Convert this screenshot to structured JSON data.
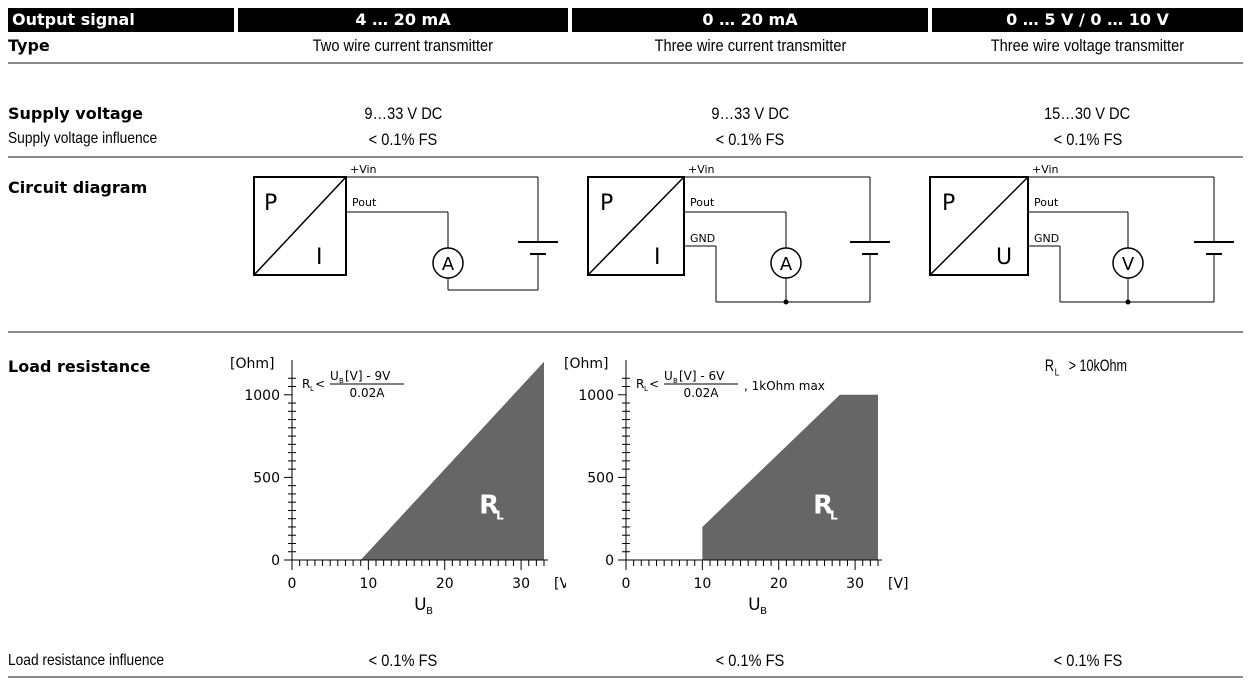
{
  "header": {
    "output_signal": "Output signal",
    "col1": "4 … 20 mA",
    "col2": "0 … 20 mA",
    "col3": "0 … 5 V  /  0 … 10 V"
  },
  "type_row": {
    "label": "Type",
    "col1": "Two wire current transmitter",
    "col2": "Three wire current transmitter",
    "col3": "Three wire voltage transmitter"
  },
  "supply_row": {
    "label": "Supply voltage",
    "sublabel": "Supply voltage influence",
    "col1": "9…33 V DC",
    "col2": "9…33 V DC",
    "col3": "15…30 V DC",
    "influence1": "< 0.1% FS",
    "influence2": "< 0.1% FS",
    "influence3": "< 0.1% FS"
  },
  "circuit_row": {
    "label": "Circuit diagram",
    "diagrams": [
      {
        "box_top": "P",
        "box_bottom": "I",
        "vin": "+Vin",
        "pout": "Pout",
        "gnd": "",
        "meter": "A"
      },
      {
        "box_top": "P",
        "box_bottom": "I",
        "vin": "+Vin",
        "pout": "Pout",
        "gnd": "GND",
        "meter": "A"
      },
      {
        "box_top": "P",
        "box_bottom": "U",
        "vin": "+Vin",
        "pout": "Pout",
        "gnd": "GND",
        "meter": "V"
      }
    ]
  },
  "load_row": {
    "label": "Load resistance",
    "col3_rl": "R",
    "col3_sub": "L",
    "col3_rest": "> 10kOhm",
    "influence_label": "Load resistance influence",
    "influence1": "< 0.1% FS",
    "influence2": "< 0.1% FS",
    "influence3": "< 0.1% FS"
  },
  "chart_data": [
    {
      "type": "area",
      "ylabel": "[Ohm]",
      "xlabel": "U",
      "xlabel_sub": "B",
      "xunit": "[V]",
      "xticks": [
        0,
        10,
        20,
        30
      ],
      "yticks": [
        0,
        500,
        1000
      ],
      "xlim": [
        0,
        33
      ],
      "ylim": [
        0,
        1150
      ],
      "formula_prefix": "R",
      "formula_prefix_sub": "L",
      "formula_lt": "<",
      "formula_num": "U",
      "formula_num_sub": "B",
      "formula_num_rest": "[V] - 9V",
      "formula_den": "0.02A",
      "formula_suffix": "",
      "region_label": "R",
      "region_label_sub": "L",
      "x": [
        9,
        33
      ],
      "y": [
        0,
        1200
      ],
      "color": "#666666"
    },
    {
      "type": "area",
      "ylabel": "[Ohm]",
      "xlabel": "U",
      "xlabel_sub": "B",
      "xunit": "[V]",
      "xticks": [
        0,
        10,
        20,
        30
      ],
      "yticks": [
        0,
        500,
        1000
      ],
      "xlim": [
        0,
        33
      ],
      "ylim": [
        0,
        1150
      ],
      "formula_prefix": "R",
      "formula_prefix_sub": "L",
      "formula_lt": "<",
      "formula_num": "U",
      "formula_num_sub": "B",
      "formula_num_rest": "[V] - 6V",
      "formula_den": "0.02A",
      "formula_suffix": ", 1kOhm max",
      "region_label": "R",
      "region_label_sub": "L",
      "x": [
        10,
        10,
        28,
        33
      ],
      "y": [
        0,
        200,
        1000,
        1000
      ],
      "color": "#666666"
    }
  ]
}
